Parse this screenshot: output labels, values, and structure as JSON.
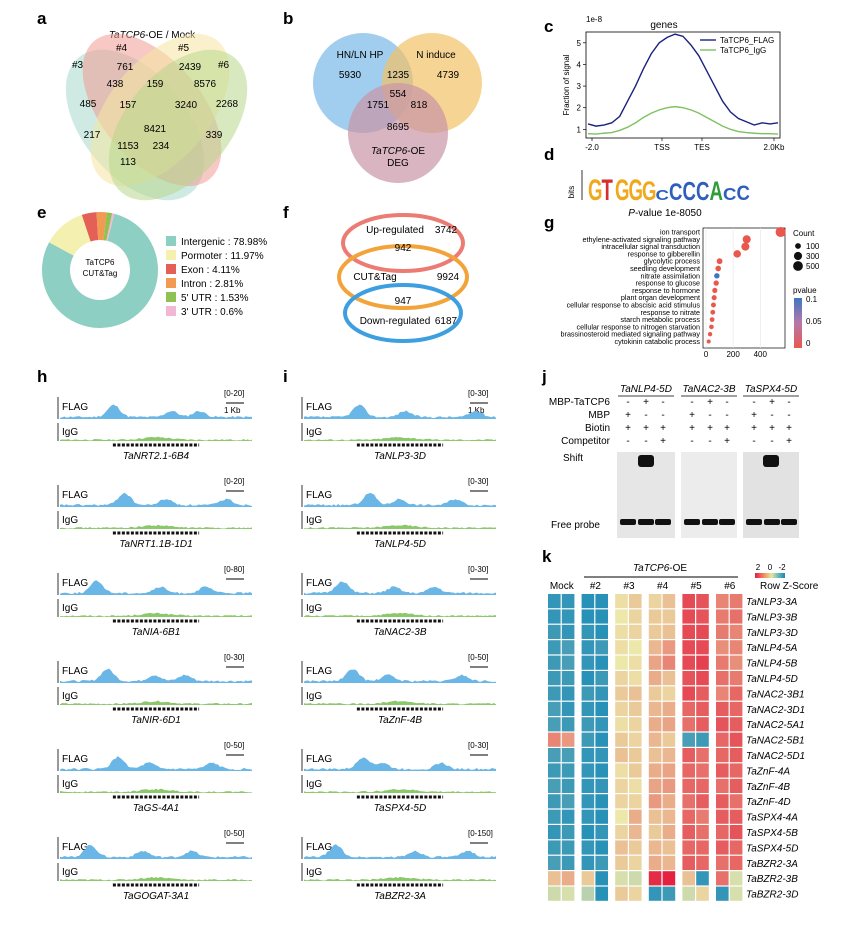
{
  "panels": {
    "a": "a",
    "b": "b",
    "c": "c",
    "d": "d",
    "e": "e",
    "f": "f",
    "g": "g",
    "h": "h",
    "i": "i",
    "j": "j",
    "k": "k"
  },
  "venn_a": {
    "title_italic": "TaTCP6",
    "title_rest": "-OE / Mock",
    "sets": [
      "#3",
      "#4",
      "#5",
      "#6"
    ],
    "values": {
      "only3": "485",
      "only4": "761",
      "only5": "2439",
      "only6": "2268",
      "s34": "438",
      "s45": "159",
      "s56": "8576",
      "s345": "157",
      "s456": "3240",
      "center": "8421",
      "s36": "217",
      "s346": "1153",
      "s356": "234",
      "s35": "339",
      "s36b": "113"
    },
    "colors": {
      "set3": "#a8d8cc",
      "set4": "#f19a94",
      "set5": "#f6e6a2",
      "set6": "#b8d78c"
    }
  },
  "venn_b": {
    "sets": [
      "HN/LN HP",
      "N induce",
      "TaTCP6-OE",
      "DEG"
    ],
    "label3_italic": "TaTCP6",
    "label3_rest": "-OE",
    "values": {
      "hn_only": "5930",
      "n_only": "4739",
      "hn_n": "1235",
      "center": "554",
      "hn_deg": "1751",
      "n_deg": "818",
      "deg_only": "8695"
    },
    "colors": {
      "hn": "#79b9e8",
      "n": "#f2c266",
      "deg": "#c994a7"
    }
  },
  "chart_data": [
    {
      "type": "line",
      "panel": "c",
      "title": "genes",
      "scale_label": "1e-8",
      "ylabel": "Fraction of signal",
      "x_ticks": [
        "-2.0",
        "TSS",
        "TES",
        "2.0Kb"
      ],
      "y_ticks": [
        "1",
        "2",
        "3",
        "4",
        "5"
      ],
      "ylim": [
        0.6,
        5.5
      ],
      "series": [
        {
          "name": "TaTCP6_FLAG",
          "color": "#1a237e",
          "values": [
            1.25,
            1.15,
            1.2,
            1.3,
            1.6,
            2.3,
            3.0,
            3.8,
            4.5,
            5.0,
            5.25,
            5.4,
            5.3,
            4.9,
            4.4,
            3.7,
            3.0,
            2.3,
            1.8,
            1.5,
            1.35,
            1.2,
            1.3,
            1.25,
            1.3
          ]
        },
        {
          "name": "TaTCP6_IgG",
          "color": "#7dc25f",
          "values": [
            0.8,
            0.78,
            0.82,
            0.85,
            0.95,
            1.1,
            1.3,
            1.55,
            1.75,
            1.9,
            2.0,
            2.05,
            2.0,
            1.9,
            1.75,
            1.55,
            1.35,
            1.15,
            1.0,
            0.9,
            0.85,
            0.82,
            0.8,
            0.8,
            0.78
          ]
        }
      ]
    },
    {
      "type": "pie",
      "panel": "e",
      "center_label": [
        "TaTCP6",
        "CUT&Tag"
      ],
      "slices": [
        {
          "label": "Intergenic : 78.98%",
          "value": 78.98,
          "color": "#8ecfc3"
        },
        {
          "label": "Pormoter : 11.97%",
          "value": 11.97,
          "color": "#f3f0b0"
        },
        {
          "label": "Exon : 4.11%",
          "value": 4.11,
          "color": "#e45f56"
        },
        {
          "label": "Intron : 2.81%",
          "value": 2.81,
          "color": "#f29a52"
        },
        {
          "label": "5' UTR : 1.53%",
          "value": 1.53,
          "color": "#8fc252"
        },
        {
          "label": "3' UTR : 0.6%",
          "value": 0.6,
          "color": "#f2b7d2"
        }
      ]
    },
    {
      "type": "scatter",
      "panel": "g",
      "xlim": [
        0,
        560
      ],
      "x_ticks": [
        0,
        200,
        400
      ],
      "categories": [
        "ion transport",
        "ethylene-activated signaling pathway",
        "intracellular signal transduction",
        "response to gibberellin",
        "glycolytic process",
        "seedling development",
        "nitrate assimilation",
        "response to glucose",
        "response to hormone",
        "plant organ development",
        "cellular response to abscisic acid stimulus",
        "response to nitrate",
        "starch metabolic process",
        "cellular response to nitrogen starvation",
        "brassinosteroid mediated signaling pathway",
        "cytokinin catabolic process"
      ],
      "values": [
        550,
        300,
        290,
        230,
        100,
        90,
        80,
        75,
        65,
        60,
        55,
        50,
        45,
        40,
        30,
        20
      ],
      "pvalues": [
        0.01,
        0.01,
        0.01,
        0.01,
        0.02,
        0.02,
        0.08,
        0.01,
        0.01,
        0.01,
        0.01,
        0.01,
        0.01,
        0.01,
        0.01,
        0.01
      ],
      "size_legend_title": "Count",
      "size_legend": [
        "100",
        "300",
        "500"
      ],
      "color_legend_title": "pvalue",
      "color_legend_ticks": [
        "0.1",
        "0.05",
        "0"
      ]
    },
    {
      "type": "heatmap",
      "panel": "k",
      "group_label_italic": "TaTCP6",
      "group_label_rest": "-OE",
      "columns": [
        "Mock",
        "#2",
        "#3",
        "#4",
        "#5",
        "#6"
      ],
      "rows": [
        "TaNLP3-3A",
        "TaNLP3-3B",
        "TaNLP3-3D",
        "TaNLP4-5A",
        "TaNLP4-5B",
        "TaNLP4-5D",
        "TaNAC2-3B1",
        "TaNAC2-3D1",
        "TaNAC2-5A1",
        "TaNAC2-5B1",
        "TaNAC2-5D1",
        "TaZnF-4A",
        "TaZnF-4B",
        "TaZnF-4D",
        "TaSPX4-4A",
        "TaSPX4-5B",
        "TaSPX4-5D",
        "TaBZR2-3A",
        "TaBZR2-3B",
        "TaBZR2-3D"
      ],
      "scale_title": "Row Z-Score",
      "scale_ticks": [
        "2",
        "0",
        "-2"
      ],
      "values": [
        [
          -1.8,
          -1.8,
          -1.9,
          -1.9,
          0.1,
          0.3,
          0.2,
          0.4,
          1.6,
          1.5,
          1.0,
          1.1
        ],
        [
          -1.8,
          -1.8,
          -1.9,
          -1.9,
          0.0,
          0.2,
          0.3,
          0.3,
          1.6,
          1.5,
          1.1,
          1.2
        ],
        [
          -1.7,
          -1.8,
          -1.8,
          -1.9,
          0.1,
          0.2,
          0.3,
          0.4,
          1.6,
          1.6,
          1.1,
          1.0
        ],
        [
          -1.7,
          -1.6,
          -1.8,
          -1.7,
          0.1,
          0.0,
          0.5,
          0.8,
          1.6,
          1.6,
          0.9,
          1.0
        ],
        [
          -1.7,
          -1.6,
          -1.8,
          -1.9,
          0.0,
          0.1,
          0.7,
          1.0,
          1.6,
          1.7,
          1.1,
          0.9
        ],
        [
          -1.7,
          -1.7,
          -1.9,
          -1.7,
          0.2,
          0.1,
          0.6,
          0.4,
          1.5,
          1.6,
          1.2,
          1.1
        ],
        [
          -1.7,
          -1.8,
          -1.7,
          -1.8,
          0.3,
          0.4,
          0.3,
          0.2,
          1.6,
          1.4,
          1.0,
          1.3
        ],
        [
          -1.6,
          -1.8,
          -1.8,
          -1.9,
          0.2,
          0.3,
          0.5,
          0.6,
          1.3,
          1.4,
          1.4,
          1.3
        ],
        [
          -1.6,
          -1.7,
          -1.7,
          -1.8,
          0.1,
          0.2,
          0.6,
          0.7,
          1.2,
          1.4,
          1.5,
          1.4
        ],
        [
          1.0,
          0.8,
          -1.7,
          -1.9,
          0.3,
          0.2,
          0.5,
          0.3,
          -1.6,
          -1.7,
          1.3,
          1.5
        ],
        [
          -1.6,
          -1.6,
          -1.8,
          -1.8,
          0.4,
          0.3,
          0.4,
          0.5,
          1.4,
          1.2,
          1.3,
          1.4
        ],
        [
          -1.7,
          -1.7,
          -1.8,
          -1.9,
          0.1,
          0.3,
          0.6,
          0.7,
          1.3,
          1.2,
          1.4,
          1.3
        ],
        [
          -1.6,
          -1.7,
          -1.8,
          -1.8,
          0.2,
          0.1,
          0.7,
          0.8,
          1.3,
          1.3,
          1.2,
          1.4
        ],
        [
          -1.7,
          -1.6,
          -1.8,
          -1.9,
          0.2,
          0.2,
          0.8,
          0.6,
          1.2,
          1.4,
          1.4,
          1.2
        ],
        [
          -1.7,
          -1.8,
          -1.8,
          -1.9,
          0.0,
          0.6,
          0.4,
          0.5,
          1.3,
          1.1,
          1.4,
          1.4
        ],
        [
          -1.8,
          -1.7,
          -1.9,
          -1.8,
          0.2,
          0.5,
          0.3,
          0.6,
          1.4,
          1.2,
          1.3,
          1.5
        ],
        [
          -1.7,
          -1.7,
          -1.8,
          -1.9,
          0.4,
          0.3,
          0.5,
          0.4,
          1.3,
          1.3,
          1.4,
          1.3
        ],
        [
          -1.6,
          -1.7,
          -1.8,
          -1.7,
          0.3,
          0.2,
          0.6,
          0.5,
          1.4,
          1.3,
          1.2,
          1.3
        ],
        [
          0.4,
          0.6,
          0.3,
          -1.9,
          -0.2,
          -0.3,
          1.9,
          2.0,
          0.4,
          -1.8,
          1.2,
          -0.2
        ],
        [
          -0.3,
          -0.2,
          -0.5,
          -1.9,
          0.3,
          0.2,
          -1.8,
          -1.7,
          -0.3,
          0.2,
          -1.8,
          -0.2
        ]
      ]
    }
  ],
  "motif_d": {
    "bits_label": "bits",
    "sequence": "GTGGGCCCCACC",
    "pvalue_italic": "P",
    "pvalue_rest": "-value 1e-8050"
  },
  "venn_f": {
    "up_label": "Up-regulated",
    "up_value": "3742",
    "cut_label": "CUT&Tag",
    "cut_value": "9924",
    "down_label": "Down-regulated",
    "down_value": "6187",
    "overlap_up": "942",
    "overlap_down": "947",
    "colors": {
      "up": "#ec7b74",
      "cut": "#f2a43a",
      "down": "#3d9fe0"
    }
  },
  "tracks_h": [
    {
      "gene": "TaNRT2.1-6B4",
      "range": "[0-20]",
      "scale": "1 Kb"
    },
    {
      "gene": "TaNRT1.1B-1D1",
      "range": "[0-20]",
      "scale": ""
    },
    {
      "gene": "TaNIA-6B1",
      "range": "[0-80]",
      "scale": ""
    },
    {
      "gene": "TaNIR-6D1",
      "range": "[0-30]",
      "scale": ""
    },
    {
      "gene": "TaGS-4A1",
      "range": "[0-50]",
      "scale": ""
    },
    {
      "gene": "TaGOGAT-3A1",
      "range": "[0-50]",
      "scale": ""
    }
  ],
  "tracks_i": [
    {
      "gene": "TaNLP3-3D",
      "range": "[0-30]",
      "scale": "1 Kb"
    },
    {
      "gene": "TaNLP4-5D",
      "range": "[0-30]",
      "scale": ""
    },
    {
      "gene": "TaNAC2-3B",
      "range": "[0-30]",
      "scale": ""
    },
    {
      "gene": "TaZnF-4B",
      "range": "[0-50]",
      "scale": ""
    },
    {
      "gene": "TaSPX4-5D",
      "range": "[0-30]",
      "scale": ""
    },
    {
      "gene": "TaBZR2-3A",
      "range": "[0-150]",
      "scale": ""
    }
  ],
  "track_labels": {
    "flag": "FLAG",
    "igg": "IgG"
  },
  "emsa_j": {
    "genes": [
      "TaNLP4-5D",
      "TaNAC2-3B",
      "TaSPX4-5D"
    ],
    "row_labels": [
      "MBP-TaTCP6",
      "MBP",
      "Biotin",
      "Competitor"
    ],
    "lane_signs": [
      [
        "-",
        "+",
        "-"
      ],
      [
        "+",
        "-",
        "-"
      ],
      [
        "+",
        "+",
        "+"
      ],
      [
        "-",
        "-",
        "+"
      ]
    ],
    "shift_label": "Shift",
    "free_label": "Free probe"
  }
}
